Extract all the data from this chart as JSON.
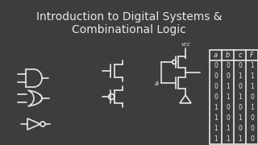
{
  "title_line1": "Introduction to Digital Systems &",
  "title_line2": "Combinational Logic",
  "title_fontsize": 10,
  "bg_color": "#3d3d3d",
  "line_color": "#e8e8e8",
  "text_color": "#e8e8e8",
  "table_headers": [
    "a",
    "b",
    "c",
    "F"
  ],
  "table_data": [
    [
      "0",
      "0",
      "0",
      "1"
    ],
    [
      "0",
      "0",
      "1",
      "1"
    ],
    [
      "0",
      "1",
      "0",
      "1"
    ],
    [
      "0",
      "1",
      "1",
      "0"
    ],
    [
      "1",
      "0",
      "0",
      "1"
    ],
    [
      "1",
      "0",
      "1",
      "0"
    ],
    [
      "1",
      "1",
      "0",
      "0"
    ],
    [
      "1",
      "1",
      "1",
      "0"
    ]
  ],
  "vcc_label": "vcc",
  "a_label": "a"
}
